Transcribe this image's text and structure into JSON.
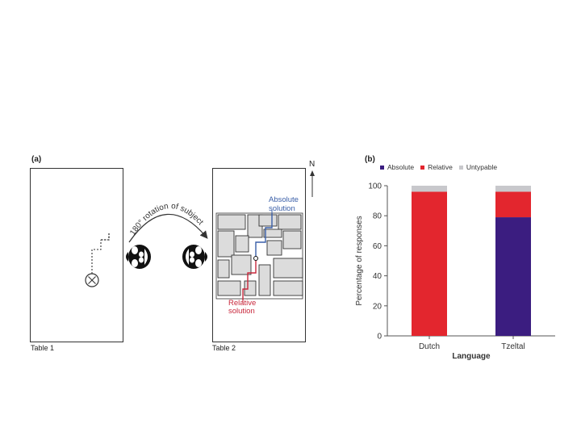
{
  "panel_a": {
    "label": "(a)",
    "table1_label": "Table 1",
    "table2_label": "Table 2",
    "rotation_text": "180° rotation of subject",
    "north_label": "N",
    "absolute_line1": "Absolute",
    "absolute_line2": "solution",
    "relative_line1": "Relative",
    "relative_line2": "solution",
    "absolute_color": "#3a5fa8",
    "relative_color": "#c8283c"
  },
  "panel_b": {
    "label": "(b)"
  },
  "chart_data": {
    "type": "bar",
    "stacked": true,
    "categories": [
      "Dutch",
      "Tzeltal"
    ],
    "series": [
      {
        "name": "Absolute",
        "color": "#3b1d80",
        "values": [
          0,
          79
        ]
      },
      {
        "name": "Relative",
        "color": "#e3262e",
        "values": [
          96,
          17
        ]
      },
      {
        "name": "Untypable",
        "color": "#c8c8cc",
        "values": [
          4,
          4
        ]
      }
    ],
    "xlabel": "Language",
    "ylabel": "Percentage of responses",
    "ylim": [
      0,
      100
    ],
    "yticks": [
      0,
      20,
      40,
      60,
      80,
      100
    ],
    "legend": "top"
  }
}
